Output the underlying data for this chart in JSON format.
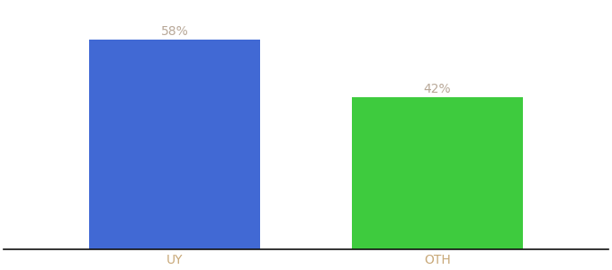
{
  "categories": [
    "UY",
    "OTH"
  ],
  "values": [
    58,
    42
  ],
  "bar_colors": [
    "#4169d4",
    "#3ecb3e"
  ],
  "label_texts": [
    "58%",
    "42%"
  ],
  "ylim": [
    0,
    68
  ],
  "background_color": "#ffffff",
  "label_color": "#b8a898",
  "tick_color": "#c8a878",
  "bar_width": 0.65,
  "label_fontsize": 10,
  "tick_fontsize": 10,
  "spine_color": "#111111",
  "figsize": [
    6.8,
    3.0
  ],
  "dpi": 100
}
